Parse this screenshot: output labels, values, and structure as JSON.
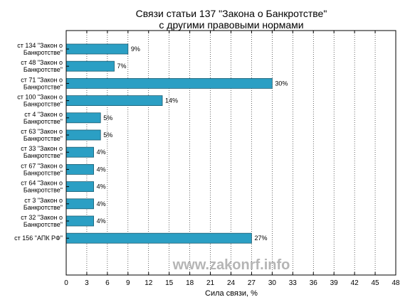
{
  "chart_data": {
    "type": "bar",
    "orientation": "horizontal",
    "title": [
      "Связи статьи 137 \"Закона о Банкротстве\"",
      "с другими правовыми нормами"
    ],
    "xlabel": "Сила связи, %",
    "ylabel": "",
    "xlim": [
      0,
      48
    ],
    "xticks": [
      0,
      3,
      6,
      9,
      12,
      15,
      18,
      21,
      24,
      27,
      30,
      33,
      36,
      39,
      42,
      45,
      48
    ],
    "grid": true,
    "bar_color": "#2b9fc4",
    "categories": [
      [
        "ст 134 \"Закон о",
        "Банкротстве\""
      ],
      [
        "ст 48 \"Закон о",
        "Банкротстве\""
      ],
      [
        "ст 71 \"Закон о",
        "Банкротстве\""
      ],
      [
        "ст 100 \"Закон о",
        "Банкротстве\""
      ],
      [
        "ст 4 \"Закон о",
        "Банкротстве\""
      ],
      [
        "ст 63 \"Закон о",
        "Банкротстве\""
      ],
      [
        "ст 33 \"Закон о",
        "Банкротстве\""
      ],
      [
        "ст 67 \"Закон о",
        "Банкротстве\""
      ],
      [
        "ст 64 \"Закон о",
        "Банкротстве\""
      ],
      [
        "ст 3 \"Закон о",
        "Банкротстве\""
      ],
      [
        "ст 32 \"Закон о",
        "Банкротстве\""
      ],
      [
        "ст 156 \"АПК РФ\""
      ]
    ],
    "values": [
      9,
      7,
      30,
      14,
      5,
      5,
      4,
      4,
      4,
      4,
      4,
      27
    ],
    "value_labels": [
      "9%",
      "7%",
      "30%",
      "14%",
      "5%",
      "5%",
      "4%",
      "4%",
      "4%",
      "4%",
      "4%",
      "27%"
    ]
  },
  "watermark": "www.zakonrf.info"
}
